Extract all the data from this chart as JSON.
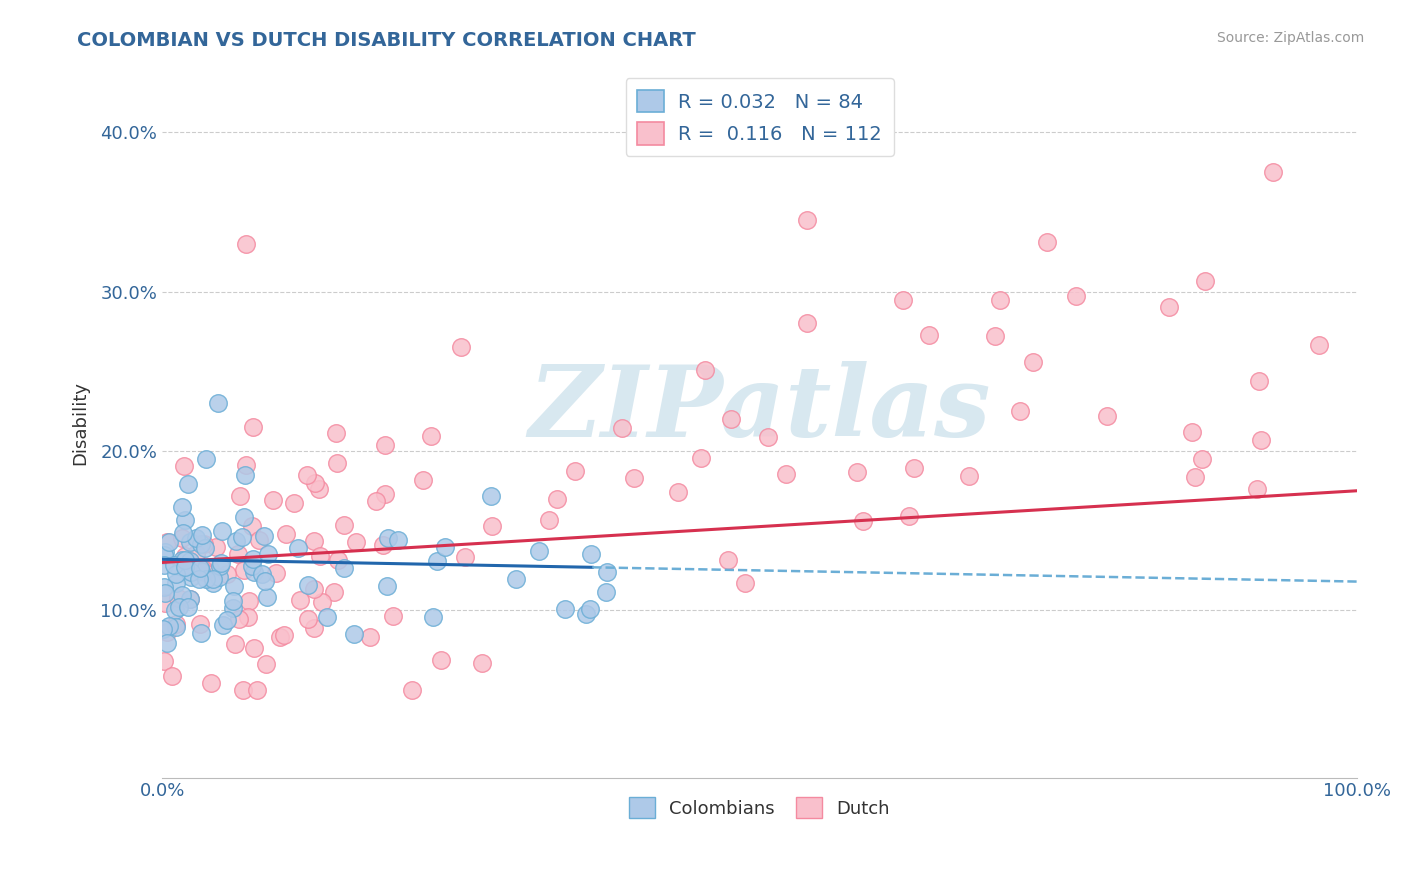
{
  "title": "COLOMBIAN VS DUTCH DISABILITY CORRELATION CHART",
  "source": "Source: ZipAtlas.com",
  "ylabel": "Disability",
  "xlim": [
    0,
    1
  ],
  "ylim": [
    -0.005,
    0.44
  ],
  "yticks": [
    0.1,
    0.2,
    0.3,
    0.4
  ],
  "ytick_labels": [
    "10.0%",
    "20.0%",
    "30.0%",
    "40.0%"
  ],
  "colombians": {
    "R": 0.032,
    "N": 84,
    "fill_color": "#aec9e8",
    "edge_color": "#6baed6",
    "line_color": "#2166ac",
    "dash_color": "#6baed6"
  },
  "dutch": {
    "R": 0.116,
    "N": 112,
    "fill_color": "#f9c0cc",
    "edge_color": "#f48aa0",
    "line_color": "#d6304f"
  },
  "background_color": "#ffffff",
  "grid_color": "#cccccc",
  "title_color": "#336699",
  "watermark_text": "ZIPatlas",
  "watermark_color": "#d8e8f0",
  "legend_labels": [
    "Colombians",
    "Dutch"
  ]
}
